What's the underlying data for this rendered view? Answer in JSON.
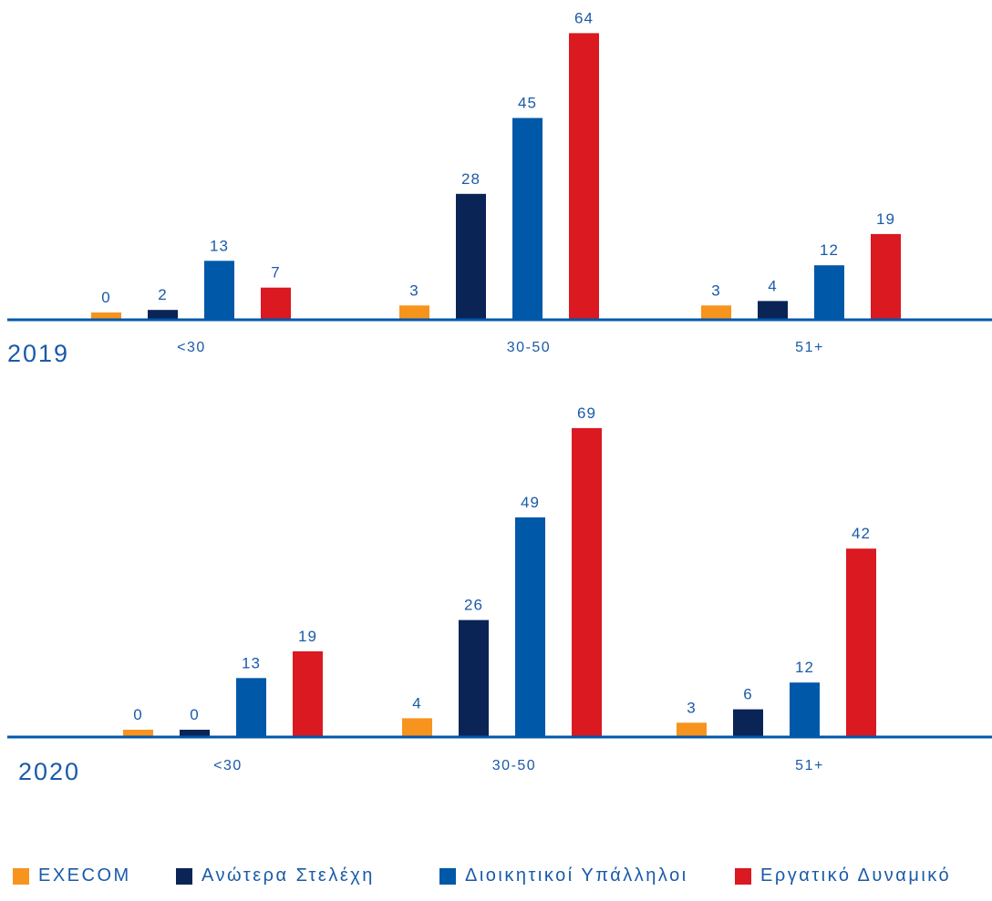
{
  "colors": {
    "execom": "#F7941D",
    "senior": "#0A2456",
    "admin": "#0058A8",
    "workforce": "#DA1921",
    "axis": "#0058A8",
    "text": "#1a5aa8"
  },
  "chart_data": [
    {
      "type": "bar",
      "year_label": "2019",
      "categories": [
        "<30",
        "30-50",
        "51+"
      ],
      "series": [
        {
          "name": "EXECOM",
          "values": [
            0,
            3,
            3
          ]
        },
        {
          "name": "Ανώτερα Στελέχη",
          "values": [
            2,
            28,
            4
          ]
        },
        {
          "name": "Διοικητικοί Υπάλληλοι",
          "values": [
            13,
            45,
            12
          ]
        },
        {
          "name": "Εργατικό Δυναμικό",
          "values": [
            7,
            64,
            19
          ]
        }
      ]
    },
    {
      "type": "bar",
      "year_label": "2020",
      "categories": [
        "<30",
        "30-50",
        "51+"
      ],
      "series": [
        {
          "name": "EXECOM",
          "values": [
            0,
            4,
            3
          ]
        },
        {
          "name": "Ανώτερα Στελέχη",
          "values": [
            0,
            26,
            6
          ]
        },
        {
          "name": "Διοικητικοί Υπάλληλοι",
          "values": [
            13,
            49,
            12
          ]
        },
        {
          "name": "Εργατικό Δυναμικό",
          "values": [
            19,
            69,
            42
          ]
        }
      ]
    }
  ],
  "legend": [
    {
      "label": "EXECOM",
      "color_key": "execom"
    },
    {
      "label": "Ανώτερα Στελέχη",
      "color_key": "senior"
    },
    {
      "label": "Διοικητικοί Υπάλληλοι",
      "color_key": "admin"
    },
    {
      "label": "Εργατικό Δυναμικό",
      "color_key": "workforce"
    }
  ]
}
